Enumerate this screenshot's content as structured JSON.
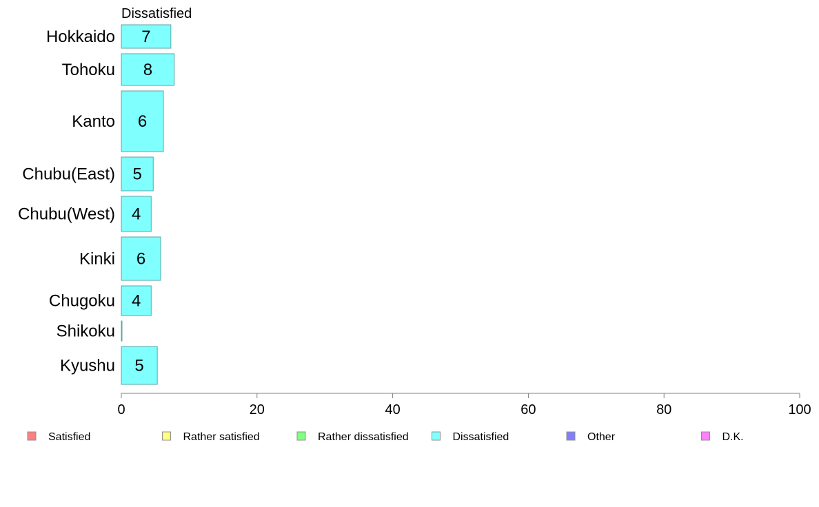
{
  "chart_data": {
    "type": "bar",
    "orientation": "horizontal",
    "title": "Dissatisfied",
    "categories": [
      "Hokkaido",
      "Tohoku",
      "Kanto",
      "Chubu(East)",
      "Chubu(West)",
      "Kinki",
      "Chugoku",
      "Shikoku",
      "Kyushu"
    ],
    "values": [
      7.3,
      7.8,
      6.2,
      4.7,
      4.4,
      5.8,
      4.4,
      0.1,
      5.3
    ],
    "data_labels": [
      "7",
      "8",
      "6",
      "5",
      "4",
      "6",
      "4",
      "",
      "5"
    ],
    "xlim": [
      0,
      100
    ],
    "xticks": [
      "0",
      "20",
      "40",
      "60",
      "80",
      "100"
    ],
    "xlabel": "",
    "ylabel": "",
    "bar_color": "#80ffff",
    "bar_border": "#5aa6a6",
    "grid": false,
    "legend_position": "bottom",
    "legend": [
      {
        "label": "Satisfied",
        "color": "#ff8080"
      },
      {
        "label": "Rather satisfied",
        "color": "#ffff80"
      },
      {
        "label": "Rather dissatisfied",
        "color": "#80ff80"
      },
      {
        "label": "Dissatisfied",
        "color": "#80ffff"
      },
      {
        "label": "Other",
        "color": "#8080ff"
      },
      {
        "label": "D.K.",
        "color": "#ff80ff"
      }
    ]
  }
}
